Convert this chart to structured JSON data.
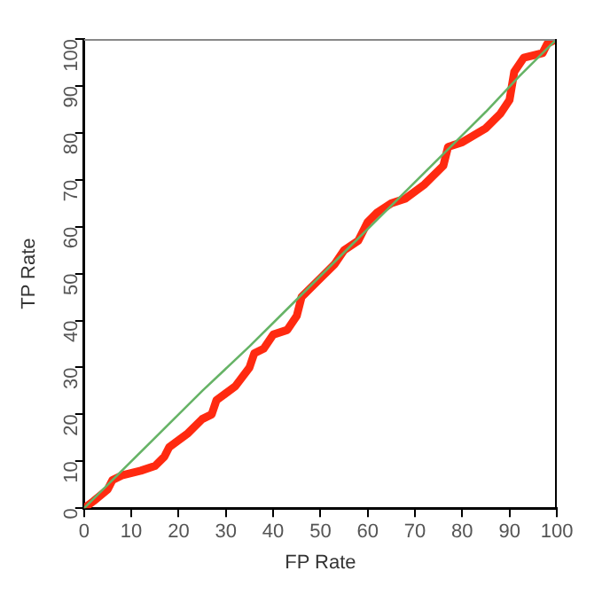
{
  "chart_data": {
    "type": "line",
    "xlabel": "FP Rate",
    "ylabel": "TP Rate",
    "xlim": [
      0,
      100
    ],
    "ylim": [
      0,
      100
    ],
    "xticks": [
      0,
      10,
      20,
      30,
      40,
      50,
      60,
      70,
      80,
      90,
      100
    ],
    "yticks": [
      0,
      10,
      20,
      30,
      40,
      50,
      60,
      70,
      80,
      90,
      100
    ],
    "grid": false,
    "legend": false,
    "marker": "none",
    "line_style": "solid",
    "series": [
      {
        "color": "#66b366",
        "x": [
          0,
          7,
          15,
          25,
          35,
          45,
          55,
          65,
          75,
          85,
          92,
          100
        ],
        "values": [
          0,
          7,
          15,
          25,
          34.5,
          44.5,
          54.5,
          64.5,
          74.5,
          84.5,
          92,
          100
        ]
      },
      {
        "color": "#ff2a10",
        "x": [
          0,
          2,
          5,
          6,
          8,
          12,
          15,
          17,
          18,
          22,
          25,
          27,
          28,
          32,
          35,
          36,
          38,
          40,
          43,
          45,
          46,
          50,
          53,
          55,
          58,
          60,
          62,
          65,
          68,
          72,
          76,
          77,
          80,
          85,
          88,
          90,
          91,
          93,
          97,
          98,
          100
        ],
        "values": [
          0,
          1.5,
          4,
          6,
          7,
          8,
          9,
          11,
          13,
          16,
          19,
          20,
          23,
          26,
          30,
          33,
          34,
          37,
          38,
          41,
          45,
          49,
          52,
          55,
          57,
          61,
          63,
          65,
          66,
          69,
          73,
          77,
          78,
          81,
          84,
          87,
          93,
          96,
          97,
          99,
          100
        ]
      }
    ]
  }
}
